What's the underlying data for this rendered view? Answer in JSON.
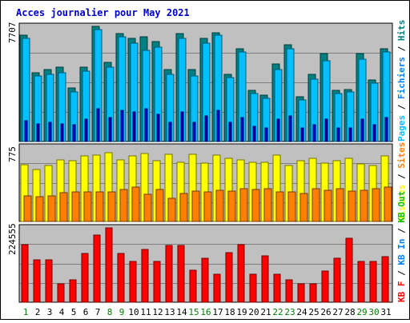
{
  "chart_data": [
    {
      "panel": "visits",
      "type": "bar",
      "title": "Acces journalier pour May 2021",
      "y_max_label": "7707",
      "y_max": 7707,
      "grid": true,
      "legend": [
        "Pages",
        "/",
        "Fichiers",
        "/",
        "Hits"
      ],
      "legend_colors": [
        "#00c0ff",
        "#000000",
        "#0080ff",
        "#000000",
        "#008080"
      ],
      "categories": [
        "1",
        "2",
        "3",
        "4",
        "5",
        "6",
        "7",
        "8",
        "9",
        "10",
        "11",
        "12",
        "13",
        "14",
        "15",
        "16",
        "17",
        "18",
        "19",
        "20",
        "21",
        "22",
        "23",
        "24",
        "25",
        "26",
        "27",
        "28",
        "29",
        "30",
        "31"
      ],
      "weekend_days": [
        "1",
        "8",
        "9",
        "15",
        "16",
        "22",
        "23",
        "29",
        "30"
      ],
      "series": [
        {
          "name": "Hits",
          "color": "#008080",
          "values": [
            7100,
            4600,
            4800,
            5000,
            3600,
            5000,
            7700,
            5300,
            7200,
            6900,
            7000,
            6700,
            4800,
            7200,
            4800,
            6900,
            7300,
            4500,
            6200,
            3400,
            3100,
            5200,
            6500,
            3000,
            4500,
            5900,
            3400,
            3500,
            5900,
            4100,
            6200
          ]
        },
        {
          "name": "Fichiers",
          "color": "#00c0ff",
          "values": [
            6900,
            4400,
            4500,
            4600,
            3300,
            4700,
            7500,
            5000,
            7000,
            6600,
            6100,
            6300,
            4500,
            6900,
            4400,
            6600,
            7100,
            4300,
            6000,
            3200,
            2900,
            4800,
            6200,
            2800,
            4200,
            5400,
            3200,
            3300,
            5500,
            3900,
            6000
          ]
        },
        {
          "name": "Pages",
          "color": "#0000cc",
          "values": [
            1400,
            1200,
            1300,
            1200,
            1100,
            1500,
            2200,
            1600,
            2100,
            2000,
            2200,
            1800,
            1300,
            2000,
            1300,
            1700,
            2100,
            1300,
            1600,
            1000,
            900,
            1500,
            1700,
            900,
            1100,
            1500,
            900,
            900,
            1500,
            1100,
            1600
          ]
        }
      ]
    },
    {
      "panel": "visitors",
      "type": "bar",
      "y_max_label": "775",
      "y_max": 775,
      "grid": true,
      "legend": [
        "Visites",
        "/",
        "Sites"
      ],
      "legend_colors": [
        "#ffff00",
        "#000000",
        "#ff8000"
      ],
      "categories": [
        "1",
        "2",
        "3",
        "4",
        "5",
        "6",
        "7",
        "8",
        "9",
        "10",
        "11",
        "12",
        "13",
        "14",
        "15",
        "16",
        "17",
        "18",
        "19",
        "20",
        "21",
        "22",
        "23",
        "24",
        "25",
        "26",
        "27",
        "28",
        "29",
        "30",
        "31"
      ],
      "series": [
        {
          "name": "Visites",
          "color": "#ffff00",
          "values": [
            595,
            540,
            585,
            640,
            630,
            685,
            695,
            715,
            640,
            685,
            710,
            630,
            700,
            615,
            700,
            610,
            690,
            660,
            645,
            620,
            620,
            690,
            580,
            635,
            655,
            610,
            635,
            660,
            600,
            580,
            685
          ]
        },
        {
          "name": "Sites",
          "color": "#ff8000",
          "values": [
            270,
            255,
            270,
            300,
            310,
            310,
            310,
            310,
            330,
            360,
            280,
            335,
            240,
            295,
            320,
            310,
            325,
            320,
            340,
            335,
            345,
            310,
            310,
            290,
            345,
            325,
            340,
            320,
            325,
            340,
            355
          ]
        }
      ]
    },
    {
      "panel": "volume",
      "type": "bar",
      "y_max_label": "224555",
      "y_max": 224555,
      "grid": true,
      "legend": [
        "KB F",
        "/",
        "KB In",
        "/",
        "KB Out"
      ],
      "legend_colors": [
        "#ff0000",
        "#000000",
        "#0080ff",
        "#000000",
        "#00c000"
      ],
      "categories": [
        "1",
        "2",
        "3",
        "4",
        "5",
        "6",
        "7",
        "8",
        "9",
        "10",
        "11",
        "12",
        "13",
        "14",
        "15",
        "16",
        "17",
        "18",
        "19",
        "20",
        "21",
        "22",
        "23",
        "24",
        "25",
        "26",
        "27",
        "28",
        "29",
        "30",
        "31"
      ],
      "series": [
        {
          "name": "KB F",
          "color": "#ff0000",
          "values": [
            175000,
            129000,
            129000,
            56000,
            68000,
            147000,
            203000,
            224555,
            147000,
            122000,
            159000,
            122000,
            172000,
            172000,
            96000,
            133000,
            84000,
            150000,
            175000,
            84000,
            140000,
            84000,
            68000,
            56000,
            56000,
            94000,
            133000,
            193000,
            122000,
            122000,
            138000
          ]
        }
      ]
    }
  ]
}
